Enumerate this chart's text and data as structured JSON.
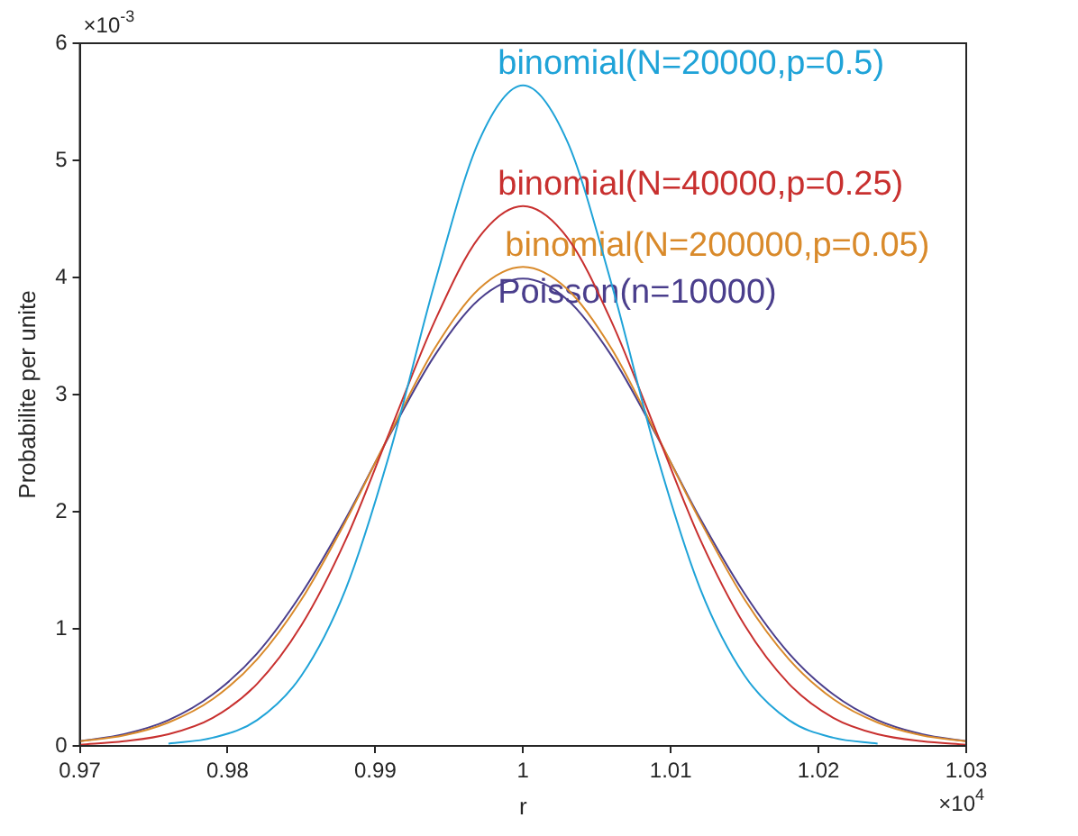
{
  "chart_data": {
    "type": "line",
    "xlabel": "r",
    "ylabel": "Probabilite per unite",
    "x": [
      0.97,
      0.973,
      0.976,
      0.979,
      0.982,
      0.985,
      0.988,
      0.991,
      0.994,
      0.997,
      1.0,
      1.003,
      1.006,
      1.009,
      1.012,
      1.015,
      1.018,
      1.021,
      1.024,
      1.027,
      1.03
    ],
    "series": [
      {
        "name": "binomial(N=20000,p=0.5)",
        "color": "#1fa3d8",
        "values": [
          null,
          null,
          0.02,
          0.07,
          0.22,
          0.6,
          1.34,
          2.51,
          3.94,
          5.16,
          5.64,
          5.16,
          3.94,
          2.51,
          1.34,
          0.6,
          0.22,
          0.07,
          0.02,
          null,
          null
        ]
      },
      {
        "name": "binomial(N=40000,p=0.25)",
        "color": "#c8302f",
        "values": [
          0.01,
          0.04,
          0.1,
          0.24,
          0.53,
          1.03,
          1.76,
          2.69,
          3.62,
          4.34,
          4.61,
          4.34,
          3.62,
          2.69,
          1.76,
          1.03,
          0.53,
          0.24,
          0.1,
          0.04,
          0.01
        ]
      },
      {
        "name": "binomial(N=200000,p=0.05)",
        "color": "#d98a2b",
        "values": [
          0.04,
          0.09,
          0.2,
          0.4,
          0.74,
          1.25,
          1.92,
          2.67,
          3.39,
          3.9,
          4.09,
          3.9,
          3.39,
          2.67,
          1.92,
          1.25,
          0.74,
          0.4,
          0.2,
          0.09,
          0.04
        ]
      },
      {
        "name": "Poisson(n=10000)",
        "color": "#4a3e8c",
        "values": [
          0.04,
          0.1,
          0.22,
          0.44,
          0.79,
          1.3,
          1.94,
          2.66,
          3.33,
          3.81,
          3.99,
          3.81,
          3.33,
          2.66,
          1.94,
          1.3,
          0.79,
          0.44,
          0.22,
          0.1,
          0.04
        ]
      }
    ],
    "xlim": [
      0.97,
      1.03
    ],
    "xticks": [
      0.97,
      0.98,
      0.99,
      1,
      1.01,
      1.02,
      1.03
    ],
    "ylim": [
      0,
      6
    ],
    "yticks": [
      0,
      1,
      2,
      3,
      4,
      5,
      6
    ],
    "annotations": [
      "×10$^{-3}$",
      "×10$^{4}$"
    ],
    "grid": false,
    "legend": false,
    "marker": "none",
    "line_style": "solid"
  }
}
